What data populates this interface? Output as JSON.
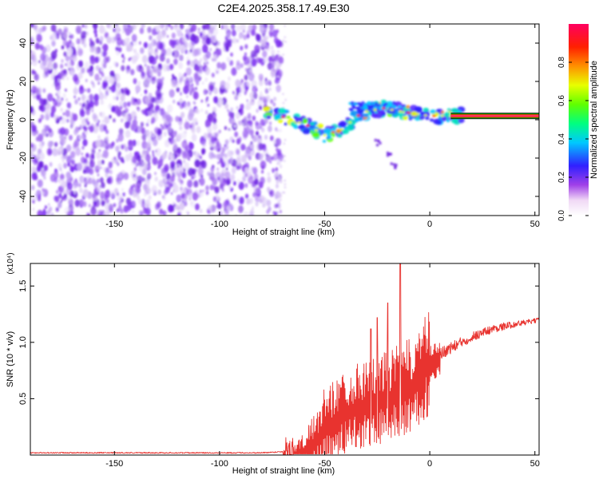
{
  "title": "C2E4.2025.358.17.49.E30",
  "colors": {
    "snr_line": "#e8332f",
    "axis": "#000000",
    "noise_dark": "#6a1ee0",
    "noise_light": "#d9c6f5"
  },
  "colorbar": {
    "label": "Normalized spectral amplitude",
    "range": [
      0,
      1
    ],
    "ticks": [
      {
        "value": 0.0,
        "label": "0.0"
      },
      {
        "value": 0.2,
        "label": "0.2"
      },
      {
        "value": 0.4,
        "label": "0.4"
      },
      {
        "value": 0.6,
        "label": "0.6"
      },
      {
        "value": 0.8,
        "label": "0.8"
      }
    ]
  },
  "chart_data": [
    {
      "id": "spectrogram",
      "type": "heatmap",
      "xlabel": "Height of straight line (km)",
      "ylabel": "Frequency (Hz)",
      "xlim": [
        -190,
        52
      ],
      "ylim": [
        -50,
        50
      ],
      "xticks": [
        {
          "value": -150,
          "label": "-150"
        },
        {
          "value": -100,
          "label": "-100"
        },
        {
          "value": -50,
          "label": "-50"
        },
        {
          "value": 0,
          "label": "0"
        },
        {
          "value": 50,
          "label": "50"
        }
      ],
      "yticks": [
        {
          "value": -40,
          "label": "-40"
        },
        {
          "value": -20,
          "label": "-20"
        },
        {
          "value": 0,
          "label": "0"
        },
        {
          "value": 20,
          "label": "20"
        },
        {
          "value": 40,
          "label": "40"
        }
      ],
      "noise_region_x": [
        -190,
        -73
      ],
      "signal_track": [
        [
          -78,
          3
        ],
        [
          -68,
          1
        ],
        [
          -58,
          -3
        ],
        [
          -50,
          -8
        ],
        [
          -42,
          -5
        ],
        [
          -32,
          4
        ],
        [
          -22,
          6
        ],
        [
          -12,
          4
        ],
        [
          0,
          2
        ],
        [
          15,
          2
        ],
        [
          52,
          2
        ]
      ],
      "signal_spur": [
        [
          -25,
          -12
        ],
        [
          -20,
          -18
        ],
        [
          -17,
          -24
        ]
      ],
      "steady_tone_x": [
        10,
        52
      ],
      "steady_tone_freq": 2
    },
    {
      "id": "snr",
      "type": "line",
      "xlabel": "Height of straight line (km)",
      "ylabel": "SNR (10 * v/v)",
      "scale_label": "(x10⁴)",
      "xlim": [
        -190,
        52
      ],
      "ylim": [
        0,
        1.7
      ],
      "xticks": [
        {
          "value": -150,
          "label": "-150"
        },
        {
          "value": -100,
          "label": "-100"
        },
        {
          "value": -50,
          "label": "-50"
        },
        {
          "value": 0,
          "label": "0"
        },
        {
          "value": 50,
          "label": "50"
        }
      ],
      "yticks": [
        {
          "value": 0.5,
          "label": "0.5"
        },
        {
          "value": 1.0,
          "label": "1.0"
        },
        {
          "value": 1.5,
          "label": "1.5"
        }
      ],
      "envelope": {
        "x": [
          -190,
          -80,
          -70,
          -60,
          -50,
          -40,
          -30,
          -20,
          -15,
          -10,
          -5,
          0,
          10,
          20,
          30,
          40,
          50,
          52
        ],
        "y": [
          0.02,
          0.02,
          0.03,
          0.08,
          0.28,
          0.42,
          0.5,
          0.55,
          0.58,
          0.62,
          0.75,
          0.85,
          0.95,
          1.05,
          1.12,
          1.16,
          1.19,
          1.2
        ]
      },
      "peaks": [
        {
          "x": -28,
          "y": 1.12
        },
        {
          "x": -25,
          "y": 1.22
        },
        {
          "x": -20,
          "y": 1.35
        },
        {
          "x": -14,
          "y": 1.7
        }
      ]
    }
  ]
}
